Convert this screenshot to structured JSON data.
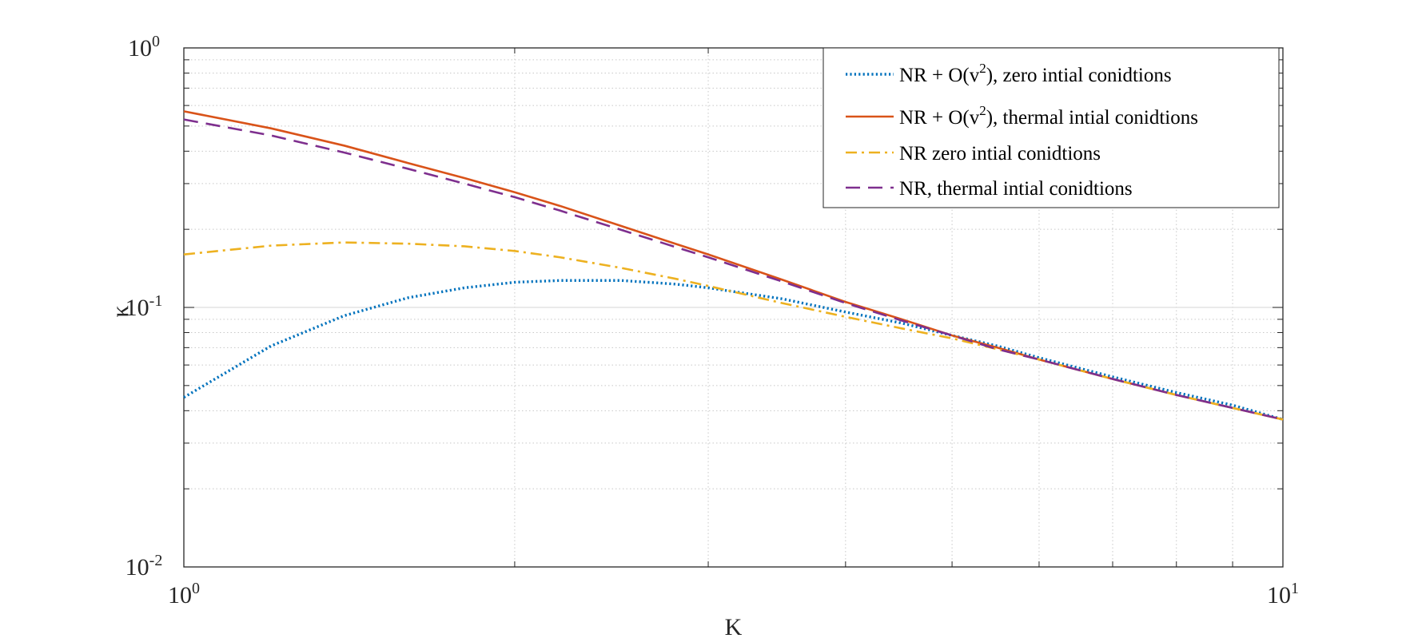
{
  "chart_data": {
    "type": "line",
    "title": "",
    "xlabel": "K",
    "ylabel": "κ",
    "xscale": "log",
    "yscale": "log",
    "xlim": [
      1,
      10
    ],
    "ylim": [
      0.01,
      1
    ],
    "grid": true,
    "minor_grid": true,
    "legend_position": "top-right",
    "x_ticks": [
      {
        "value": 1,
        "base": "10",
        "exp": "0"
      },
      {
        "value": 10,
        "base": "10",
        "exp": "1"
      }
    ],
    "y_ticks": [
      {
        "value": 0.01,
        "base": "10",
        "exp": "-2"
      },
      {
        "value": 0.1,
        "base": "10",
        "exp": "-1"
      },
      {
        "value": 1,
        "base": "10",
        "exp": "0"
      }
    ],
    "x": [
      1,
      1.2,
      1.4,
      1.6,
      1.8,
      2,
      2.2,
      2.5,
      2.8,
      3,
      3.5,
      4,
      4.5,
      5,
      5.5,
      6,
      7,
      8,
      9,
      10
    ],
    "series": [
      {
        "name_parts": [
          "NR + O(v",
          "2",
          "), zero intial conidtions"
        ],
        "color": "#0072BD",
        "dash": "dotted",
        "values": [
          0.045,
          0.071,
          0.093,
          0.109,
          0.119,
          0.125,
          0.127,
          0.127,
          0.123,
          0.119,
          0.108,
          0.096,
          0.087,
          0.078,
          0.071,
          0.064,
          0.054,
          0.047,
          0.042,
          0.037
        ]
      },
      {
        "name_parts": [
          "NR + O(v",
          "2",
          "), thermal intial conidtions"
        ],
        "color": "#D95319",
        "dash": "solid",
        "values": [
          0.57,
          0.49,
          0.42,
          0.36,
          0.315,
          0.278,
          0.246,
          0.206,
          0.176,
          0.16,
          0.128,
          0.105,
          0.09,
          0.078,
          0.07,
          0.063,
          0.053,
          0.046,
          0.041,
          0.037
        ]
      },
      {
        "name_parts": [
          "NR zero intial conidtions"
        ],
        "color": "#EDB120",
        "dash": "dashdot",
        "values": [
          0.16,
          0.173,
          0.178,
          0.176,
          0.172,
          0.165,
          0.156,
          0.142,
          0.129,
          0.121,
          0.104,
          0.092,
          0.083,
          0.076,
          0.069,
          0.063,
          0.053,
          0.046,
          0.041,
          0.037
        ]
      },
      {
        "name_parts": [
          "NR, thermal intial conidtions"
        ],
        "color": "#7E2F8E",
        "dash": "dashed",
        "values": [
          0.53,
          0.46,
          0.395,
          0.342,
          0.3,
          0.266,
          0.236,
          0.199,
          0.171,
          0.156,
          0.126,
          0.104,
          0.089,
          0.078,
          0.069,
          0.063,
          0.053,
          0.046,
          0.041,
          0.037
        ]
      }
    ]
  }
}
